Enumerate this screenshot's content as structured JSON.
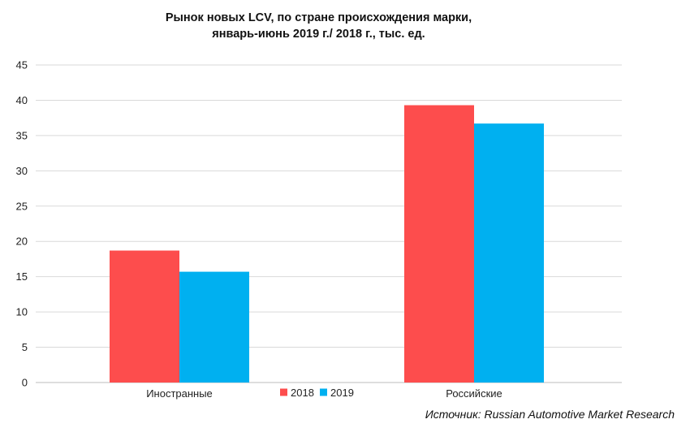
{
  "chart_data": {
    "type": "bar",
    "title_lines": [
      "Рынок новых LCV, по стране происхождения марки,",
      "январь-июнь 2019 г./ 2018 г., тыс. ед."
    ],
    "categories": [
      "Иностранные",
      "Российские"
    ],
    "series": [
      {
        "name": "2018",
        "color": "#fd4d4d",
        "values": [
          18.7,
          39.3
        ]
      },
      {
        "name": "2019",
        "color": "#00b0f0",
        "values": [
          15.7,
          36.7
        ]
      }
    ],
    "ylim": [
      0,
      45
    ],
    "yticks": [
      "0",
      "5",
      "10",
      "15",
      "20",
      "25",
      "30",
      "35",
      "40",
      "45"
    ],
    "grid": true,
    "legend_position": "bottom"
  },
  "source": {
    "prefix": "Источник:",
    "text": " Russian Automotive Market Research"
  }
}
